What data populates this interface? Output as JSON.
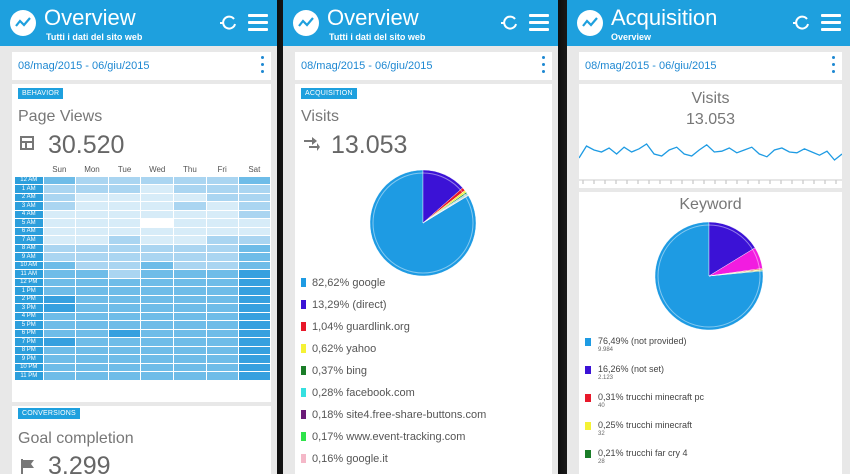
{
  "colors": {
    "accent": "#1ea0de",
    "date": "#1e88d2"
  },
  "p1": {
    "header_title": "Overview",
    "header_subtitle": "Tutti i dati del sito web",
    "date_range": "08/mag/2015 - 06/giu/2015",
    "behavior_tag": "BEHAVIOR",
    "pageviews_title": "Page Views",
    "pageviews_value": "30.520",
    "days": [
      "Sun",
      "Mon",
      "Tue",
      "Wed",
      "Thu",
      "Fri",
      "Sat"
    ],
    "hours": [
      "12 AM",
      "1 AM",
      "2 AM",
      "3 AM",
      "4 AM",
      "5 AM",
      "6 AM",
      "7 AM",
      "8 AM",
      "9 AM",
      "10 AM",
      "11 AM",
      "12 PM",
      "1 PM",
      "2 PM",
      "3 PM",
      "4 PM",
      "5 PM",
      "6 PM",
      "7 PM",
      "8 PM",
      "9 PM",
      "10 PM",
      "11 PM"
    ],
    "heat_levels": [
      [
        3,
        2,
        2,
        2,
        2,
        2,
        3
      ],
      [
        2,
        2,
        2,
        1,
        2,
        2,
        2
      ],
      [
        2,
        1,
        1,
        1,
        1,
        2,
        2
      ],
      [
        2,
        1,
        1,
        1,
        2,
        1,
        2
      ],
      [
        1,
        1,
        1,
        1,
        1,
        1,
        2
      ],
      [
        1,
        1,
        1,
        0,
        1,
        1,
        1
      ],
      [
        1,
        1,
        1,
        1,
        1,
        1,
        1
      ],
      [
        1,
        1,
        2,
        1,
        1,
        2,
        2
      ],
      [
        2,
        2,
        2,
        2,
        2,
        2,
        3
      ],
      [
        2,
        2,
        2,
        2,
        2,
        2,
        3
      ],
      [
        3,
        2,
        2,
        3,
        2,
        2,
        3
      ],
      [
        3,
        3,
        2,
        3,
        3,
        3,
        4
      ],
      [
        3,
        3,
        3,
        3,
        3,
        3,
        4
      ],
      [
        3,
        3,
        3,
        3,
        3,
        3,
        4
      ],
      [
        4,
        3,
        3,
        3,
        3,
        3,
        4
      ],
      [
        4,
        3,
        3,
        3,
        3,
        3,
        4
      ],
      [
        3,
        3,
        3,
        3,
        3,
        3,
        4
      ],
      [
        3,
        3,
        3,
        3,
        3,
        3,
        4
      ],
      [
        3,
        3,
        4,
        3,
        3,
        3,
        4
      ],
      [
        4,
        3,
        3,
        3,
        3,
        3,
        4
      ],
      [
        3,
        3,
        3,
        3,
        3,
        3,
        4
      ],
      [
        3,
        3,
        3,
        3,
        3,
        3,
        4
      ],
      [
        3,
        3,
        3,
        3,
        3,
        3,
        4
      ],
      [
        3,
        3,
        3,
        3,
        3,
        3,
        4
      ]
    ],
    "conversions_tag": "CONVERSIONS",
    "goal_title": "Goal completion",
    "goal_value": "3.299"
  },
  "p2": {
    "header_title": "Overview",
    "header_subtitle": "Tutti i dati del sito web",
    "date_range": "08/mag/2015 - 06/giu/2015",
    "acq_tag": "ACQUISITION",
    "visits_title": "Visits",
    "visits_value": "13.053",
    "sources": [
      {
        "label": "82,62% google",
        "pct": 82.62,
        "color": "#1e9be3"
      },
      {
        "label": "13,29% (direct)",
        "pct": 13.29,
        "color": "#3b12d6"
      },
      {
        "label": "1,04% guardlink.org",
        "pct": 1.04,
        "color": "#e8182a"
      },
      {
        "label": "0,62% yahoo",
        "pct": 0.62,
        "color": "#f5f235"
      },
      {
        "label": "0,37% bing",
        "pct": 0.37,
        "color": "#1a7d28"
      },
      {
        "label": "0,28% facebook.com",
        "pct": 0.28,
        "color": "#35e0e0"
      },
      {
        "label": "0,18% site4.free-share-buttons.com",
        "pct": 0.18,
        "color": "#6b1a78"
      },
      {
        "label": "0,17% www.event-tracking.com",
        "pct": 0.17,
        "color": "#2ee34a"
      },
      {
        "label": "0,16% google.it",
        "pct": 0.16,
        "color": "#f4b8c8"
      }
    ]
  },
  "p3": {
    "header_title": "Acquisition",
    "header_subtitle": "Overview",
    "date_range": "08/mag/2015 - 06/giu/2015",
    "visits_title": "Visits",
    "visits_value": "13.053",
    "sparkline": [
      0.35,
      0.65,
      0.55,
      0.5,
      0.6,
      0.45,
      0.62,
      0.5,
      0.58,
      0.7,
      0.45,
      0.4,
      0.55,
      0.62,
      0.45,
      0.4,
      0.55,
      0.68,
      0.5,
      0.52,
      0.6,
      0.48,
      0.55,
      0.62,
      0.45,
      0.38,
      0.55,
      0.6,
      0.5,
      0.48,
      0.58,
      0.5,
      0.42,
      0.52,
      0.3,
      0.45
    ],
    "keyword_title": "Keyword",
    "keywords": [
      {
        "label": "76,49% (not provided)",
        "count": "9.984",
        "pct": 76.49,
        "color": "#1e9be3"
      },
      {
        "label": "16,26% (not set)",
        "count": "2.123",
        "pct": 16.26,
        "color": "#3b12d6"
      },
      {
        "label": "0,31% trucchi minecraft pc",
        "count": "40",
        "pct": 0.31,
        "color": "#e8182a"
      },
      {
        "label": "0,25% trucchi minecraft",
        "count": "32",
        "pct": 0.25,
        "color": "#f5f235"
      },
      {
        "label": "0,21% trucchi far cry 4",
        "count": "28",
        "pct": 0.21,
        "color": "#1a7d28"
      }
    ],
    "keyword_other_pct": 6.48,
    "keyword_other_color": "#f21ce0"
  }
}
